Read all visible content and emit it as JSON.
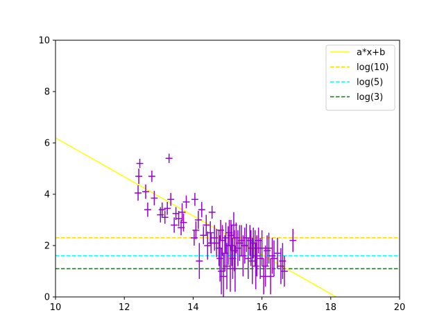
{
  "chart_data": {
    "type": "scatter",
    "title": "",
    "xlabel": "",
    "ylabel": "",
    "xlim": [
      10,
      20
    ],
    "ylim": [
      0,
      10
    ],
    "xticks": [
      "10",
      "12",
      "14",
      "16",
      "18",
      "20"
    ],
    "yticks": [
      "0",
      "2",
      "4",
      "6",
      "8",
      "10"
    ],
    "grid": false,
    "legend_position": "top-right",
    "legend": [
      {
        "label": "a*x+b",
        "color": "#ffff00",
        "style": "solid"
      },
      {
        "label": "log(10)",
        "color": "#ffd700",
        "style": "dashed"
      },
      {
        "label": "log(5)",
        "color": "#00ffff",
        "style": "dashed"
      },
      {
        "label": "log(3)",
        "color": "#008000",
        "style": "dashed"
      }
    ],
    "fit_line": {
      "name": "a*x+b",
      "slope": -0.76,
      "intercept": 13.8,
      "color": "#ffff00"
    },
    "hlines": [
      {
        "name": "log(10)",
        "y": 2.303,
        "color": "#ffd700"
      },
      {
        "name": "log(5)",
        "y": 1.609,
        "color": "#00ffff"
      },
      {
        "name": "log(3)",
        "y": 1.099,
        "color": "#008000"
      }
    ],
    "points": {
      "color": "#9400d3",
      "x": [
        12.4,
        12.42,
        12.45,
        12.62,
        12.68,
        12.8,
        12.87,
        13.05,
        13.1,
        13.18,
        13.25,
        13.3,
        13.35,
        13.45,
        13.5,
        13.58,
        13.65,
        13.68,
        13.72,
        13.8,
        14.03,
        14.05,
        14.08,
        14.15,
        14.18,
        14.25,
        14.3,
        14.38,
        14.42,
        14.5,
        14.52,
        14.55,
        14.62,
        14.68,
        14.75,
        14.78,
        14.8,
        14.82,
        14.85,
        14.88,
        14.92,
        14.95,
        14.98,
        15.02,
        15.05,
        15.08,
        15.1,
        15.12,
        15.15,
        15.18,
        15.2,
        15.22,
        15.25,
        15.3,
        15.35,
        15.4,
        15.45,
        15.5,
        15.55,
        15.6,
        15.65,
        15.68,
        15.72,
        15.75,
        15.8,
        15.82,
        15.85,
        15.9,
        15.95,
        16.0,
        16.05,
        16.1,
        16.15,
        16.2,
        16.25,
        16.3,
        16.35,
        16.45,
        16.55,
        16.6,
        16.65,
        16.9
      ],
      "y": [
        4.05,
        4.7,
        5.2,
        4.1,
        3.4,
        4.7,
        3.85,
        3.2,
        3.4,
        3.1,
        3.45,
        5.4,
        3.8,
        2.8,
        3.25,
        3.05,
        2.7,
        3.3,
        2.9,
        3.7,
        2.3,
        3.8,
        2.6,
        3.0,
        1.4,
        3.4,
        2.4,
        2.8,
        2.0,
        2.5,
        2.1,
        3.3,
        2.3,
        2.1,
        1.9,
        1.5,
        2.6,
        1.0,
        2.2,
        0.8,
        1.7,
        2.3,
        1.2,
        2.0,
        2.5,
        1.1,
        2.4,
        2.0,
        1.5,
        2.8,
        1.8,
        1.1,
        2.3,
        1.9,
        2.1,
        2.2,
        1.6,
        2.0,
        2.3,
        1.5,
        2.2,
        1.9,
        1.4,
        2.1,
        1.9,
        1.2,
        1.6,
        2.2,
        1.5,
        1.9,
        0.8,
        1.2,
        1.8,
        1.9,
        0.8,
        1.6,
        1.5,
        1.7,
        1.2,
        1.4,
        1.0,
        2.2
      ],
      "yerr": [
        0.3,
        0.3,
        0.18,
        0.28,
        0.28,
        0.22,
        0.28,
        0.3,
        0.28,
        0.25,
        0.25,
        0.18,
        0.25,
        0.3,
        0.25,
        0.3,
        0.3,
        0.35,
        0.35,
        0.25,
        0.3,
        0.25,
        0.35,
        0.35,
        0.7,
        0.3,
        0.35,
        0.4,
        0.55,
        0.45,
        0.4,
        0.25,
        0.5,
        0.55,
        0.7,
        0.9,
        0.4,
        0.9,
        0.6,
        0.9,
        0.7,
        0.6,
        0.9,
        0.75,
        0.5,
        0.9,
        0.6,
        0.8,
        0.8,
        0.5,
        0.8,
        0.9,
        0.6,
        0.7,
        0.7,
        0.6,
        0.8,
        0.7,
        0.55,
        0.8,
        0.6,
        0.7,
        0.9,
        0.6,
        0.7,
        0.9,
        0.8,
        0.5,
        0.8,
        0.7,
        0.7,
        0.8,
        0.6,
        0.6,
        0.7,
        0.7,
        0.7,
        0.6,
        0.7,
        0.7,
        0.6,
        0.45
      ],
      "xerr": 0.1
    }
  }
}
